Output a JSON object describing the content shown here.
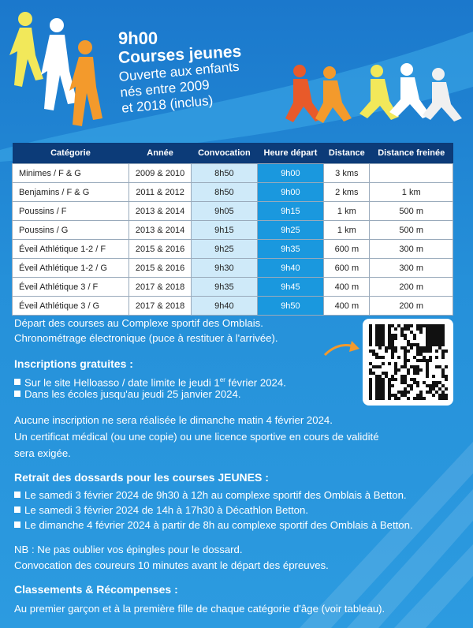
{
  "header": {
    "time": "9h00",
    "title": "Courses jeunes",
    "subtitle_lines": [
      "Ouverte aux enfants",
      "nés entre 2009",
      "et 2018 (inclus)"
    ]
  },
  "table": {
    "columns": [
      "Catégorie",
      "Année",
      "Convocation",
      "Heure départ",
      "Distance",
      "Distance freinée"
    ],
    "rows": [
      [
        "Minimes / F & G",
        "2009 & 2010",
        "8h50",
        "9h00",
        "3 kms",
        null
      ],
      [
        "Benjamins / F & G",
        "2011 & 2012",
        "8h50",
        "9h00",
        "2 kms",
        "1 km"
      ],
      [
        "Poussins / F",
        "2013 & 2014",
        "9h05",
        "9h15",
        "1 km",
        "500 m"
      ],
      [
        "Poussins / G",
        "2013 & 2014",
        "9h15",
        "9h25",
        "1 km",
        "500 m"
      ],
      [
        "Éveil Athlétique 1-2 / F",
        "2015 & 2016",
        "9h25",
        "9h35",
        "600 m",
        "300 m"
      ],
      [
        "Éveil Athlétique 1-2 / G",
        "2015 & 2016",
        "9h30",
        "9h40",
        "600 m",
        "300 m"
      ],
      [
        "Éveil Athlétique 3 / F",
        "2017 & 2018",
        "9h35",
        "9h45",
        "400 m",
        "200 m"
      ],
      [
        "Éveil Athlétique 3 / G",
        "2017 & 2018",
        "9h40",
        "9h50",
        "400 m",
        "200 m"
      ]
    ]
  },
  "info": {
    "lines": [
      "Départ des courses au Complexe sportif des Omblais.",
      "Chronométrage électronique (puce à restituer à l'arrivée)."
    ]
  },
  "inscriptions": {
    "title": "Inscriptions gratuites :",
    "item_1": {
      "text": "Sur le site Helloasso / date limite le jeudi 1",
      "sup": "er",
      "after": " février 2024."
    },
    "item_2": "Dans les écoles jusqu'au jeudi 25 janvier 2024."
  },
  "notice": {
    "lines": [
      "Aucune inscription ne sera réalisée le dimanche matin 4 février 2024.",
      "Un certificat médical (ou une copie) ou une licence sportive en cours de validité",
      "sera exigée."
    ]
  },
  "retrait": {
    "title": "Retrait des dossards pour les courses JEUNES :",
    "items": [
      "Le samedi 3 février 2024 de 9h30 à 12h au complexe sportif des Omblais à Betton.",
      "Le samedi 3 février 2024 de 14h à 17h30 à Décathlon Betton.",
      "Le dimanche 4 février 2024 à partir de 8h au complexe sportif des Omblais à Betton."
    ]
  },
  "nb": {
    "lines": [
      "NB : Ne pas oublier vos épingles pour le dossard.",
      "Convocation des coureurs 10 minutes avant le départ des épreuves."
    ]
  },
  "classements": {
    "title": "Classements & Récompenses :",
    "text": "Au premier garçon et à la première fille de chaque catégorie d'âge (voir tableau)."
  }
}
